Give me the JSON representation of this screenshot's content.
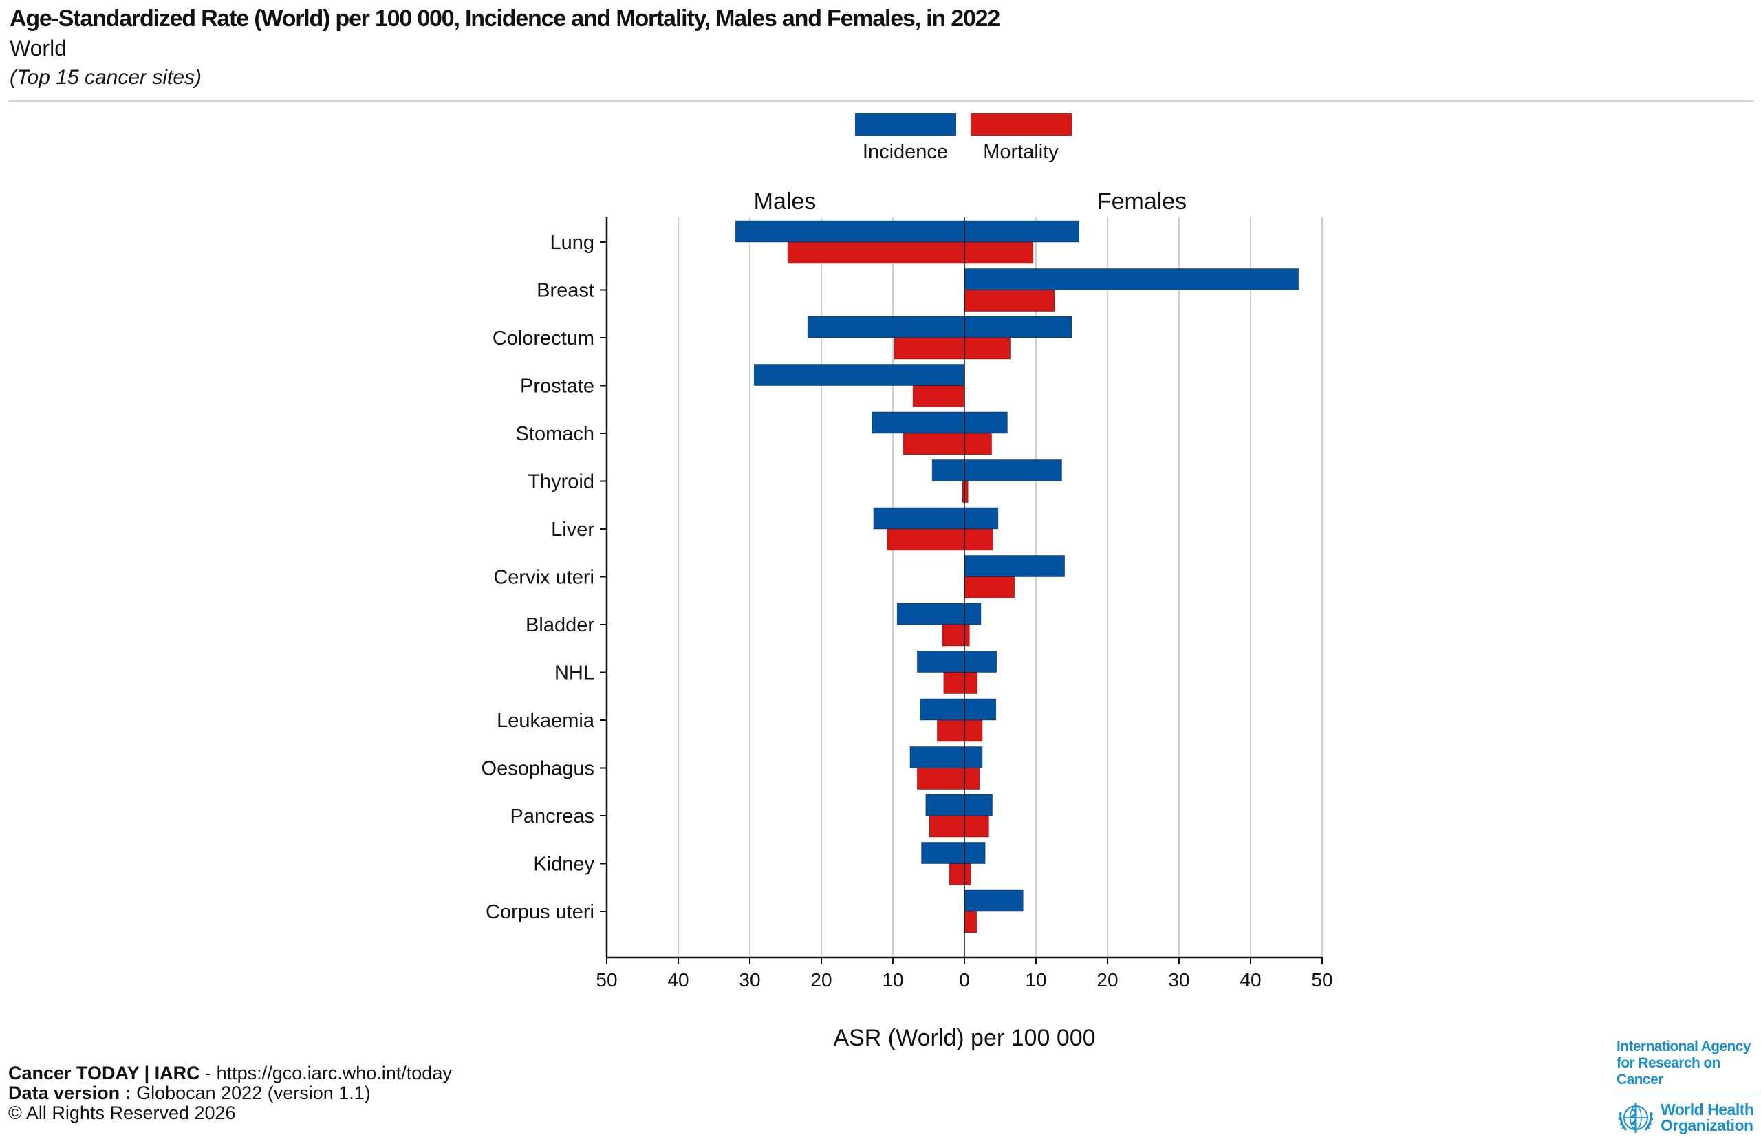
{
  "header": {
    "title": "Age-Standardized Rate (World) per 100 000, Incidence and Mortality, Males and Females, in 2022",
    "subtitle": "World",
    "note": "(Top 15 cancer sites)"
  },
  "legend": [
    {
      "label": "Incidence",
      "color": "#02529f"
    },
    {
      "label": "Mortality",
      "color": "#d81717"
    }
  ],
  "chart_data": {
    "type": "bar",
    "orientation": "horizontal-butterfly",
    "title": "Age-Standardized Rate (World) per 100 000, Incidence and Mortality, Males and Females, in 2022",
    "panels": {
      "left": "Males",
      "right": "Females"
    },
    "xlabel": "ASR (World) per 100 000",
    "ylabel": "",
    "xlim": [
      -50,
      50
    ],
    "x_ticks": [
      50,
      40,
      30,
      20,
      10,
      0,
      10,
      20,
      30,
      40,
      50
    ],
    "x_tick_values": [
      -50,
      -40,
      -30,
      -20,
      -10,
      0,
      10,
      20,
      30,
      40,
      50
    ],
    "grid": true,
    "legend_position": "top-center",
    "categories": [
      "Lung",
      "Breast",
      "Colorectum",
      "Prostate",
      "Stomach",
      "Thyroid",
      "Liver",
      "Cervix uteri",
      "Bladder",
      "NHL",
      "Leukaemia",
      "Oesophagus",
      "Pancreas",
      "Kidney",
      "Corpus uteri"
    ],
    "series": [
      {
        "name": "Incidence",
        "sex": "Males",
        "color": "#02529f",
        "values": [
          32.0,
          0,
          21.9,
          29.4,
          12.9,
          4.5,
          12.7,
          0,
          9.4,
          6.6,
          6.2,
          7.6,
          5.4,
          6.0,
          0
        ]
      },
      {
        "name": "Mortality",
        "sex": "Males",
        "color": "#d81717",
        "values": [
          24.7,
          0,
          9.8,
          7.2,
          8.6,
          0.3,
          10.8,
          0,
          3.1,
          2.9,
          3.8,
          6.6,
          4.9,
          2.1,
          0
        ]
      },
      {
        "name": "Incidence",
        "sex": "Females",
        "color": "#02529f",
        "values": [
          16.0,
          46.7,
          15.0,
          0,
          6.0,
          13.6,
          4.7,
          14.0,
          2.3,
          4.5,
          4.4,
          2.5,
          3.9,
          2.9,
          8.2
        ]
      },
      {
        "name": "Mortality",
        "sex": "Females",
        "color": "#d81717",
        "values": [
          9.6,
          12.6,
          6.4,
          0,
          3.8,
          0.5,
          4.0,
          7.0,
          0.7,
          1.8,
          2.5,
          2.1,
          3.4,
          0.9,
          1.7
        ]
      }
    ]
  },
  "footer": {
    "brand": "Cancer TODAY | IARC",
    "url_text": " - https://gco.iarc.who.int/today",
    "data_version_label": "Data version :",
    "data_version_value": " Globocan 2022 (version 1.1)",
    "copyright": "© All Rights Reserved 2026"
  },
  "logo": {
    "iarc_line1": "International Agency",
    "iarc_line2": "for Research on Cancer",
    "who_line1": "World Health",
    "who_line2": "Organization",
    "color": "#1a8fd0"
  }
}
